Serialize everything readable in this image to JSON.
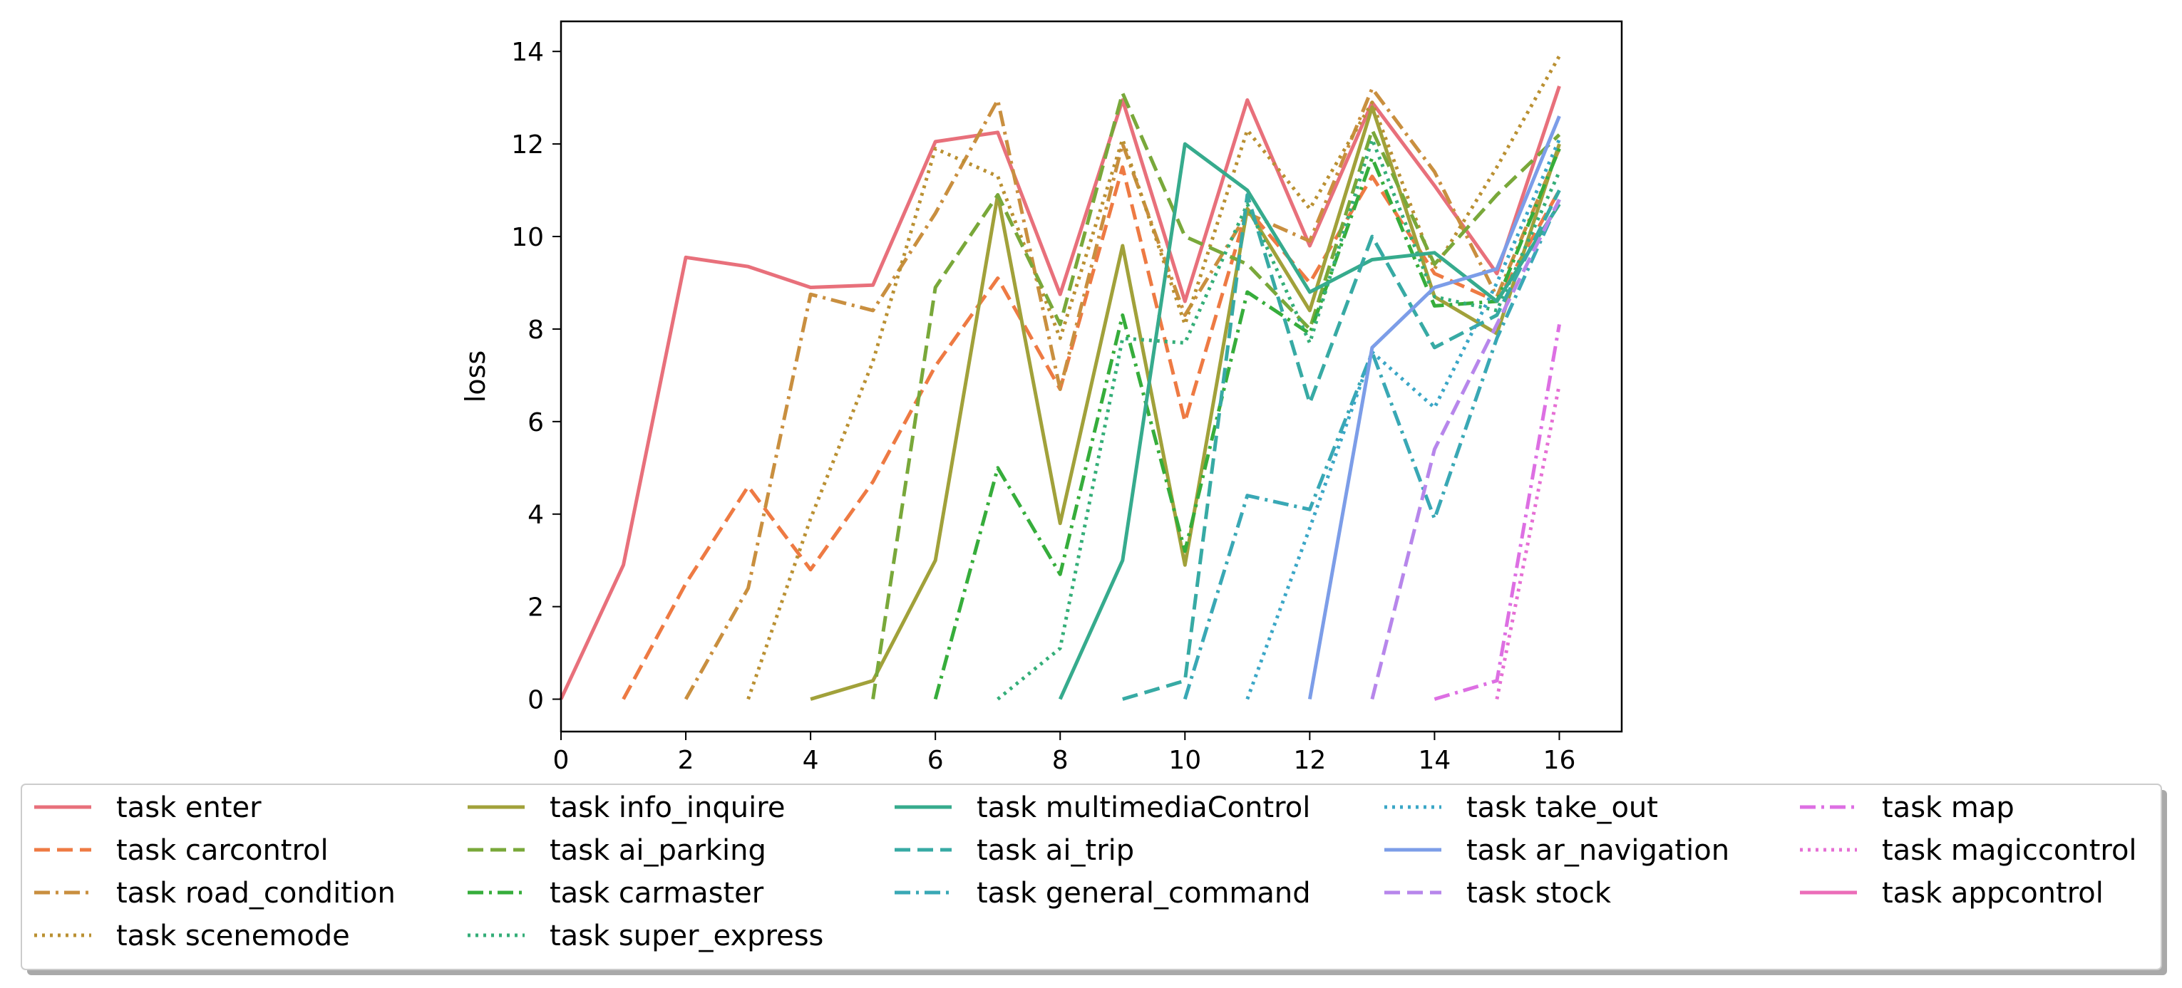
{
  "chart_data": {
    "type": "line",
    "title": "",
    "xlabel": "",
    "ylabel": "loss",
    "xlim": [
      0,
      17
    ],
    "ylim": [
      -0.7,
      14.65
    ],
    "xticks": [
      0,
      2,
      4,
      6,
      8,
      10,
      12,
      14,
      16
    ],
    "yticks": [
      0,
      2,
      4,
      6,
      8,
      10,
      12,
      14
    ],
    "grid": false,
    "legend_placement": "below",
    "series": [
      {
        "name": "task enter",
        "color": "#e8707b",
        "dash": "solid",
        "x": [
          0,
          1,
          2,
          3,
          4,
          5,
          6,
          7,
          8,
          9,
          10,
          11,
          12,
          13,
          14,
          15,
          16
        ],
        "y": [
          0,
          2.9,
          9.55,
          9.35,
          8.9,
          8.95,
          12.05,
          12.25,
          8.75,
          12.95,
          8.6,
          12.95,
          9.8,
          12.9,
          11.1,
          9.2,
          13.25
        ]
      },
      {
        "name": "task carcontrol",
        "color": "#ee7a43",
        "dash": "dashed",
        "x": [
          1,
          2,
          3,
          4,
          5,
          6,
          7,
          8,
          9,
          10,
          11,
          12,
          13,
          14,
          15,
          16
        ],
        "y": [
          0,
          2.5,
          4.6,
          2.8,
          4.7,
          7.2,
          9.1,
          6.7,
          11.5,
          6.0,
          10.6,
          9.0,
          11.3,
          9.2,
          8.6,
          11.0
        ]
      },
      {
        "name": "task road_condition",
        "color": "#c98f3f",
        "dash": "dashdot",
        "x": [
          2,
          3,
          4,
          5,
          6,
          7,
          8,
          9,
          10,
          11,
          12,
          13,
          14,
          15,
          16
        ],
        "y": [
          0,
          2.4,
          8.75,
          8.4,
          10.5,
          12.95,
          6.7,
          12.0,
          8.3,
          10.5,
          9.9,
          13.2,
          11.4,
          8.7,
          11.9
        ]
      },
      {
        "name": "task scenemode",
        "color": "#ba9032",
        "dash": "dotted",
        "x": [
          3,
          4,
          5,
          6,
          7,
          8,
          9,
          10,
          11,
          12,
          13,
          14,
          15,
          16
        ],
        "y": [
          0,
          3.9,
          7.3,
          11.9,
          11.3,
          7.8,
          12.1,
          8.1,
          12.3,
          10.6,
          12.9,
          9.3,
          11.5,
          13.9
        ]
      },
      {
        "name": "task info_inquire",
        "color": "#a1a13a",
        "dash": "solid",
        "x": [
          4,
          5,
          6,
          7,
          8,
          9,
          10,
          11,
          12,
          13,
          14,
          15,
          16
        ],
        "y": [
          0,
          0.4,
          3.0,
          10.9,
          3.8,
          9.8,
          2.9,
          10.6,
          8.4,
          12.8,
          8.7,
          7.9,
          12.0
        ]
      },
      {
        "name": "task ai_parking",
        "color": "#79a83a",
        "dash": "dashed",
        "x": [
          5,
          6,
          7,
          8,
          9,
          10,
          11,
          12,
          13,
          14,
          15,
          16
        ],
        "y": [
          0,
          8.9,
          10.9,
          8.1,
          13.1,
          10.0,
          9.4,
          8.0,
          12.3,
          9.4,
          10.9,
          12.2
        ]
      },
      {
        "name": "task carmaster",
        "color": "#36ad3b",
        "dash": "dashdot",
        "x": [
          6,
          7,
          8,
          9,
          10,
          11,
          12,
          13,
          14,
          15,
          16
        ],
        "y": [
          0,
          5.0,
          2.7,
          8.3,
          3.2,
          8.8,
          7.9,
          11.7,
          8.5,
          8.6,
          11.9
        ]
      },
      {
        "name": "task super_express",
        "color": "#34ae78",
        "dash": "dotted",
        "x": [
          7,
          8,
          9,
          10,
          11,
          12,
          13,
          14,
          15,
          16
        ],
        "y": [
          0,
          1.1,
          7.8,
          7.7,
          10.7,
          7.7,
          12.1,
          8.7,
          8.4,
          11.4
        ]
      },
      {
        "name": "task multimediaControl",
        "color": "#36ab8d",
        "dash": "solid",
        "x": [
          8,
          9,
          10,
          11,
          12,
          13,
          14,
          15,
          16
        ],
        "y": [
          0,
          3.0,
          12.0,
          11.0,
          8.8,
          9.5,
          9.65,
          8.6,
          10.7
        ]
      },
      {
        "name": "task ai_trip",
        "color": "#37aaa4",
        "dash": "dashed",
        "x": [
          9,
          10,
          11,
          12,
          13,
          14,
          15,
          16
        ],
        "y": [
          0,
          0.4,
          10.9,
          6.4,
          10.0,
          7.6,
          8.3,
          11.0
        ]
      },
      {
        "name": "task general_command",
        "color": "#39a8b5",
        "dash": "dashdot",
        "x": [
          10,
          11,
          12,
          13,
          14,
          15,
          16
        ],
        "y": [
          0,
          4.4,
          4.1,
          7.5,
          3.9,
          7.8,
          10.8
        ]
      },
      {
        "name": "task take_out",
        "color": "#3aa6c6",
        "dash": "dotted",
        "x": [
          11,
          12,
          13,
          14,
          15,
          16
        ],
        "y": [
          0,
          3.7,
          7.5,
          6.3,
          9.0,
          12.1
        ]
      },
      {
        "name": "task ar_navigation",
        "color": "#7c9de8",
        "dash": "solid",
        "x": [
          12,
          13,
          14,
          15,
          16
        ],
        "y": [
          0,
          7.6,
          8.9,
          9.3,
          12.6
        ]
      },
      {
        "name": "task stock",
        "color": "#b786eb",
        "dash": "dashed",
        "x": [
          13,
          14,
          15,
          16
        ],
        "y": [
          0,
          5.4,
          8.1,
          10.8
        ]
      },
      {
        "name": "task map",
        "color": "#dd6fe3",
        "dash": "dashdot",
        "x": [
          14,
          15,
          16
        ],
        "y": [
          0,
          0.4,
          8.1
        ]
      },
      {
        "name": "task magiccontrol",
        "color": "#e66fd4",
        "dash": "dotted",
        "x": [
          15,
          16
        ],
        "y": [
          0,
          6.8
        ]
      },
      {
        "name": "task appcontrol",
        "color": "#eb6db8",
        "dash": "solid",
        "x": [],
        "y": []
      }
    ]
  }
}
